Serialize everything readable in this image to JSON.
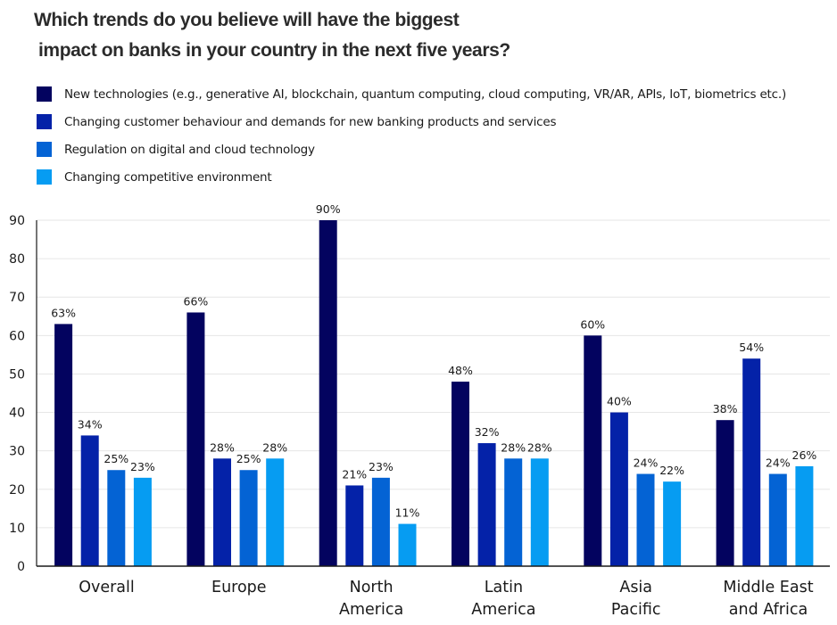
{
  "chart_data": {
    "type": "bar",
    "title": "Which trends do you believe will have the biggest impact on banks in your country in the next five years?",
    "title_lines": [
      "Which trends do you believe will have the biggest",
      "impact on banks in your country in the  next five years?"
    ],
    "xlabel": "",
    "ylabel": "",
    "ylim": [
      0,
      90
    ],
    "yticks": [
      0,
      10,
      20,
      30,
      40,
      50,
      60,
      70,
      80,
      90
    ],
    "grid": true,
    "legend_position": "top-left",
    "categories": [
      [
        "Overall"
      ],
      [
        "Europe"
      ],
      [
        "North",
        "America"
      ],
      [
        "Latin",
        "America"
      ],
      [
        "Asia",
        "Pacific"
      ],
      [
        "Middle East",
        "and Africa"
      ]
    ],
    "series": [
      {
        "name": "New technologies (e.g., generative AI, blockchain, quantum computing, cloud computing, VR/AR, APIs, IoT, biometrics etc.)",
        "color": "#03035f",
        "values": [
          63,
          66,
          90,
          48,
          60,
          38
        ],
        "labels": [
          "63%",
          "66%",
          "90%",
          "48%",
          "60%",
          "38%"
        ]
      },
      {
        "name": "Changing customer behaviour and demands for new banking products and services",
        "color": "#0422a8",
        "values": [
          34,
          28,
          21,
          32,
          40,
          54
        ],
        "labels": [
          "34%",
          "28%",
          "21%",
          "32%",
          "40%",
          "54%"
        ]
      },
      {
        "name": "Regulation on digital and cloud technology",
        "color": "#0463d4",
        "values": [
          25,
          25,
          23,
          28,
          24,
          24
        ],
        "labels": [
          "25%",
          "25%",
          "23%",
          "28%",
          "24%",
          "24%"
        ]
      },
      {
        "name": "Changing competitive environment",
        "color": "#069cf2",
        "values": [
          23,
          28,
          11,
          28,
          22,
          26
        ],
        "labels": [
          "23%",
          "28%",
          "11%",
          "28%",
          "22%",
          "26%"
        ]
      }
    ]
  }
}
